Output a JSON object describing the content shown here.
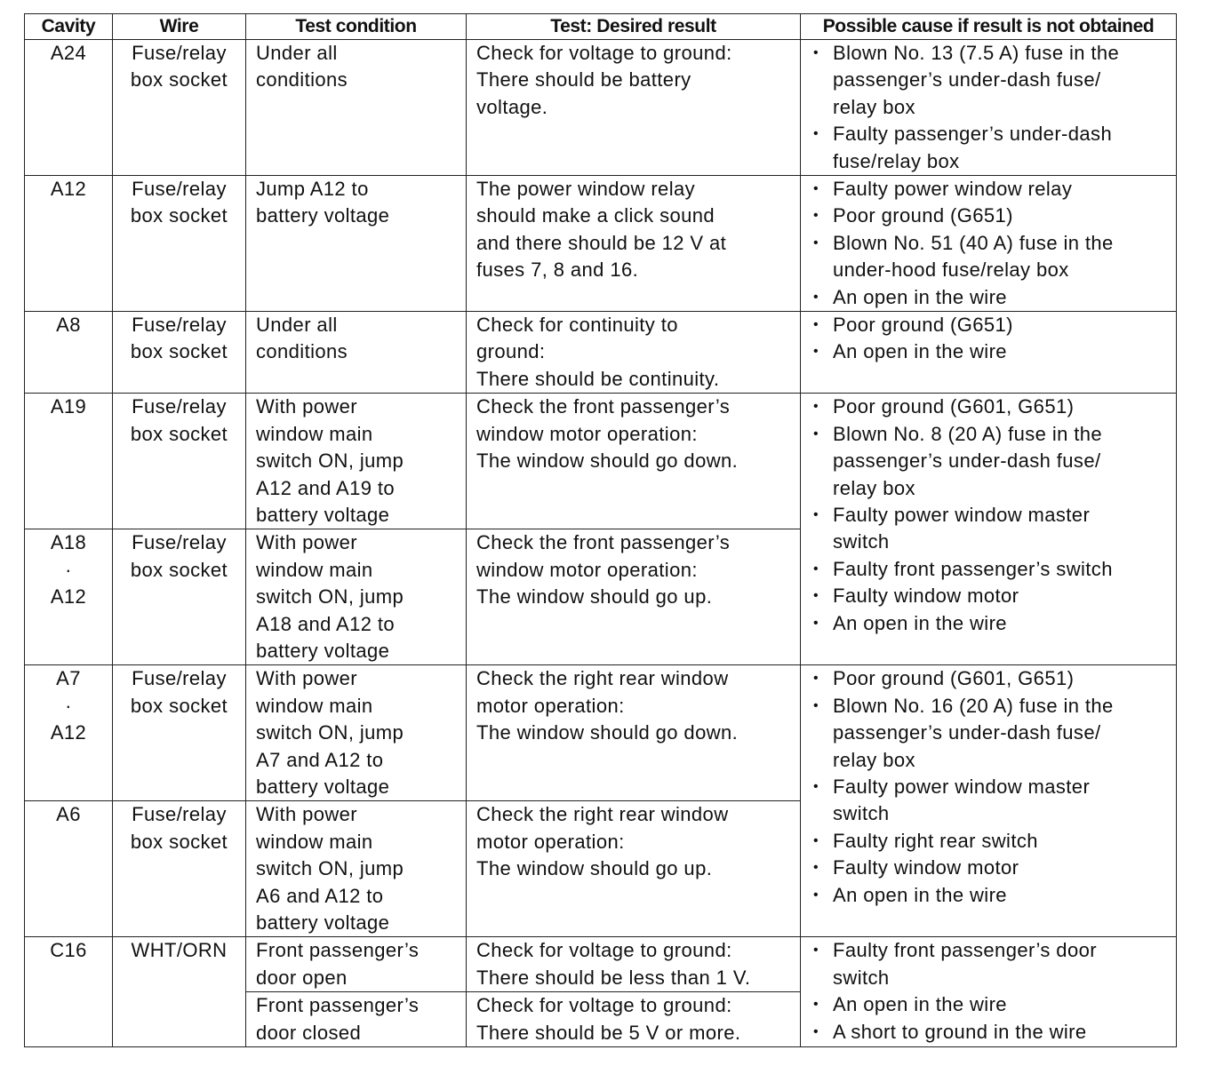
{
  "headers": {
    "cavity": "Cavity",
    "wire": "Wire",
    "condition": "Test condition",
    "result": "Test: Desired result",
    "cause": "Possible cause if result is not obtained"
  },
  "rows": [
    {
      "cavity": "A24",
      "wire": "Fuse/relay\nbox socket",
      "condition": "Under all\nconditions",
      "result": "Check for voltage to ground:\nThere should be battery\nvoltage.",
      "causes": [
        "Blown No. 13 (7.5 A) fuse in the\npassenger’s under-dash fuse/\nrelay box",
        "Faulty passenger’s under-dash\nfuse/relay box"
      ]
    },
    {
      "cavity": "A12",
      "wire": "Fuse/relay\nbox socket",
      "condition": "Jump A12 to\nbattery voltage",
      "result": "The power window relay\nshould make a click sound\nand there should be 12 V at\nfuses 7, 8 and 16.",
      "causes": [
        "Faulty power window relay",
        "Poor ground (G651)",
        "Blown No. 51 (40 A) fuse in the\nunder-hood fuse/relay box",
        "An open in the wire"
      ]
    },
    {
      "cavity": "A8",
      "wire": "Fuse/relay\nbox socket",
      "condition": "Under all\nconditions",
      "result": "Check for continuity to\nground:\nThere should be continuity.",
      "causes": [
        "Poor ground (G651)",
        "An open in the wire"
      ]
    },
    {
      "cavity": "A19",
      "wire": "Fuse/relay\nbox socket",
      "condition": "With power\nwindow main\nswitch ON, jump\nA12 and A19 to\nbattery voltage",
      "result": "Check the front passenger’s\nwindow motor operation:\nThe window should go down.",
      "causes": [
        "Poor ground (G601, G651)",
        "Blown No. 8 (20 A) fuse in the\npassenger’s under-dash fuse/\nrelay box",
        "Faulty power window master\nswitch",
        "Faulty front passenger’s switch",
        "Faulty window motor",
        "An open in the wire"
      ]
    },
    {
      "cavity": "A18\n·\nA12",
      "wire": "Fuse/relay\nbox socket",
      "condition": "With power\nwindow main\nswitch ON, jump\nA18 and A12 to\nbattery voltage",
      "result": "Check the front passenger’s\nwindow motor operation:\nThe window should go up."
    },
    {
      "cavity": "A7\n·\nA12",
      "wire": "Fuse/relay\nbox socket",
      "condition": "With power\nwindow main\nswitch ON, jump\nA7 and A12 to\nbattery voltage",
      "result": "Check the right rear window\nmotor operation:\nThe window should go down.",
      "causes": [
        "Poor ground (G601, G651)",
        "Blown No. 16 (20 A) fuse in the\npassenger’s under-dash fuse/\nrelay box",
        "Faulty power window master\nswitch",
        "Faulty right rear switch",
        "Faulty window motor",
        "An open in the wire"
      ]
    },
    {
      "cavity": "A6",
      "wire": "Fuse/relay\nbox socket",
      "condition": "With power\nwindow main\nswitch ON, jump\nA6 and A12 to\nbattery voltage",
      "result": "Check the right rear window\nmotor operation:\nThe window should go up."
    },
    {
      "cavity": "C16",
      "wire": "WHT/ORN",
      "condition": "Front passenger’s\ndoor open",
      "result": "Check for voltage to ground:\nThere should be less than 1 V.",
      "condition2": "Front passenger’s\ndoor closed",
      "result2": "Check for voltage to ground:\nThere should be 5 V or more.",
      "causes": [
        "Faulty front passenger’s door\nswitch",
        "An open in the wire",
        "A short to ground in the wire"
      ]
    }
  ]
}
